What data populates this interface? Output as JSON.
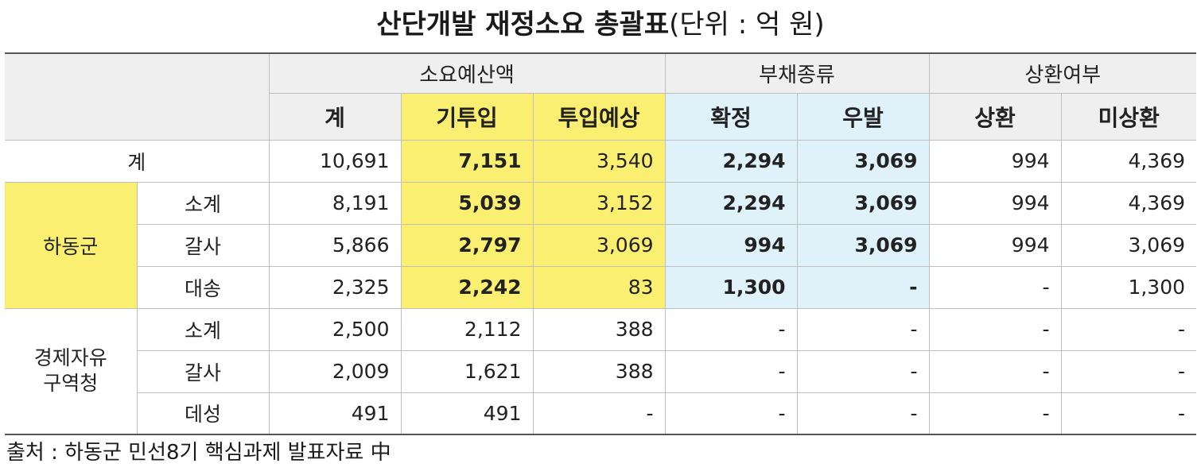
{
  "title": {
    "main": "산단개발 재정소요 총괄표",
    "unit": "(단위 : 억 원)"
  },
  "header": {
    "groups": {
      "budget": "소요예산액",
      "debt": "부채종류",
      "repay": "상환여부"
    },
    "columns": {
      "total": "계",
      "invested": "기투입",
      "expected": "투입예상",
      "confirmed": "확정",
      "contingent": "우발",
      "repaid": "상환",
      "unrepaid": "미상환"
    }
  },
  "groups": {
    "total_label": "계",
    "hadong": "하동군",
    "fez": "경제자유\n구역청"
  },
  "rows": [
    {
      "label": "계",
      "total": "10,691",
      "invested": "7,151",
      "expected": "3,540",
      "confirmed": "2,294",
      "contingent": "3,069",
      "repaid": "994",
      "unrepaid": "4,369"
    },
    {
      "label": "소계",
      "total": "8,191",
      "invested": "5,039",
      "expected": "3,152",
      "confirmed": "2,294",
      "contingent": "3,069",
      "repaid": "994",
      "unrepaid": "4,369"
    },
    {
      "label": "갈사",
      "total": "5,866",
      "invested": "2,797",
      "expected": "3,069",
      "confirmed": "994",
      "contingent": "3,069",
      "repaid": "994",
      "unrepaid": "3,069"
    },
    {
      "label": "대송",
      "total": "2,325",
      "invested": "2,242",
      "expected": "83",
      "confirmed": "1,300",
      "contingent": "-",
      "repaid": "-",
      "unrepaid": "1,300"
    },
    {
      "label": "소계",
      "total": "2,500",
      "invested": "2,112",
      "expected": "388",
      "confirmed": "-",
      "contingent": "-",
      "repaid": "-",
      "unrepaid": "-"
    },
    {
      "label": "갈사",
      "total": "2,009",
      "invested": "1,621",
      "expected": "388",
      "confirmed": "-",
      "contingent": "-",
      "repaid": "-",
      "unrepaid": "-"
    },
    {
      "label": "데성",
      "total": "491",
      "invested": "491",
      "expected": "-",
      "confirmed": "-",
      "contingent": "-",
      "repaid": "-",
      "unrepaid": "-"
    }
  ],
  "source": "출처 : 하동군 민선8기 핵심과제 발표자료 中",
  "colors": {
    "header_gray": "#efefef",
    "highlight_yellow": "#fbef72",
    "highlight_blue": "#dff2fa"
  }
}
